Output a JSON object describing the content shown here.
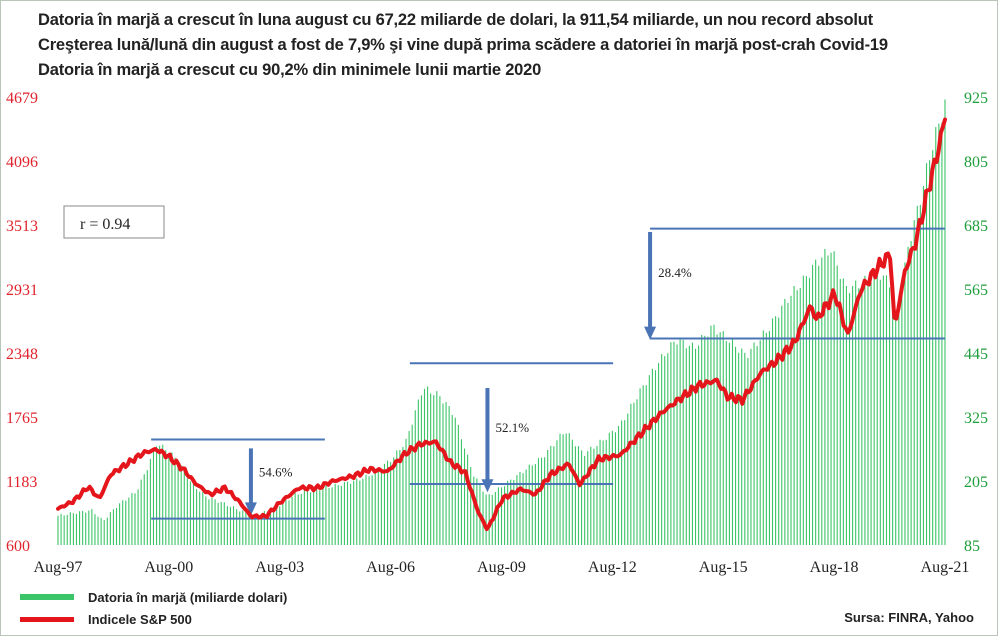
{
  "chart_data": {
    "type": "bar+line",
    "titles": [
      "Datoria în marjă a crescut în luna august cu 67,22 miliarde de dolari, la 911,54 miliarde, un nou record absolut",
      "Creşterea lună/lună din august a fost de 7,9% şi vine după prima scădere a datoriei în marjă post-crah Covid-19",
      "Datoria în marjă a crescut cu 90,2% din minimele lunii martie 2020"
    ],
    "x_ticks": [
      "Aug-97",
      "Aug-00",
      "Aug-03",
      "Aug-06",
      "Aug-09",
      "Aug-12",
      "Aug-15",
      "Aug-18",
      "Aug-21"
    ],
    "x_range": [
      1997.58,
      2021.58
    ],
    "y_left": {
      "ticks": [
        "4679",
        "4096",
        "3513",
        "2931",
        "2348",
        "1765",
        "1183",
        "600"
      ],
      "range": [
        600,
        4679
      ],
      "color": "#e0232c"
    },
    "y_right": {
      "ticks": [
        "925",
        "805",
        "685",
        "565",
        "445",
        "325",
        "205",
        "85"
      ],
      "range": [
        85,
        925
      ],
      "color": "#1f9e3c"
    },
    "series": [
      {
        "name": "Datoria în marjă (miliarde dolari)",
        "type": "bar",
        "axis": "right",
        "color": "#3cc468",
        "points": [
          [
            1997.58,
            140
          ],
          [
            1998.0,
            145
          ],
          [
            1998.5,
            150
          ],
          [
            1998.8,
            130
          ],
          [
            1999.2,
            160
          ],
          [
            1999.7,
            185
          ],
          [
            2000.0,
            230
          ],
          [
            2000.25,
            275
          ],
          [
            2000.5,
            265
          ],
          [
            2000.8,
            245
          ],
          [
            2001.2,
            200
          ],
          [
            2001.6,
            175
          ],
          [
            2002.0,
            165
          ],
          [
            2002.5,
            150
          ],
          [
            2002.9,
            140
          ],
          [
            2003.3,
            150
          ],
          [
            2003.7,
            165
          ],
          [
            2004.0,
            180
          ],
          [
            2004.6,
            190
          ],
          [
            2005.0,
            195
          ],
          [
            2005.6,
            205
          ],
          [
            2006.0,
            215
          ],
          [
            2006.6,
            245
          ],
          [
            2007.0,
            280
          ],
          [
            2007.45,
            380
          ],
          [
            2007.9,
            365
          ],
          [
            2008.3,
            330
          ],
          [
            2008.8,
            220
          ],
          [
            2009.2,
            175
          ],
          [
            2009.7,
            200
          ],
          [
            2010.2,
            225
          ],
          [
            2010.7,
            250
          ],
          [
            2011.3,
            300
          ],
          [
            2011.8,
            255
          ],
          [
            2012.3,
            280
          ],
          [
            2012.8,
            310
          ],
          [
            2013.3,
            370
          ],
          [
            2013.8,
            425
          ],
          [
            2014.3,
            470
          ],
          [
            2014.8,
            455
          ],
          [
            2015.3,
            495
          ],
          [
            2015.8,
            465
          ],
          [
            2016.2,
            440
          ],
          [
            2016.8,
            490
          ],
          [
            2017.3,
            545
          ],
          [
            2017.8,
            585
          ],
          [
            2018.1,
            615
          ],
          [
            2018.5,
            640
          ],
          [
            2018.9,
            565
          ],
          [
            2019.3,
            575
          ],
          [
            2019.8,
            595
          ],
          [
            2020.1,
            575
          ],
          [
            2020.25,
            500
          ],
          [
            2020.6,
            650
          ],
          [
            2020.9,
            730
          ],
          [
            2021.2,
            825
          ],
          [
            2021.58,
            911.54
          ]
        ]
      },
      {
        "name": "Indicele S&P 500",
        "type": "line",
        "axis": "left",
        "color": "#e5151c",
        "points": [
          [
            1997.58,
            930
          ],
          [
            1998.0,
            1000
          ],
          [
            1998.4,
            1130
          ],
          [
            1998.7,
            1020
          ],
          [
            1999.0,
            1240
          ],
          [
            1999.5,
            1350
          ],
          [
            1999.9,
            1440
          ],
          [
            2000.25,
            1470
          ],
          [
            2000.6,
            1400
          ],
          [
            2001.0,
            1280
          ],
          [
            2001.3,
            1160
          ],
          [
            2001.7,
            1060
          ],
          [
            2002.1,
            1120
          ],
          [
            2002.5,
            990
          ],
          [
            2002.8,
            860
          ],
          [
            2003.2,
            860
          ],
          [
            2003.6,
            990
          ],
          [
            2004.1,
            1120
          ],
          [
            2004.6,
            1120
          ],
          [
            2005.0,
            1180
          ],
          [
            2005.6,
            1230
          ],
          [
            2006.0,
            1290
          ],
          [
            2006.5,
            1270
          ],
          [
            2007.0,
            1440
          ],
          [
            2007.4,
            1520
          ],
          [
            2007.8,
            1540
          ],
          [
            2008.2,
            1350
          ],
          [
            2008.6,
            1260
          ],
          [
            2008.95,
            900
          ],
          [
            2009.2,
            740
          ],
          [
            2009.6,
            1020
          ],
          [
            2010.1,
            1110
          ],
          [
            2010.5,
            1060
          ],
          [
            2010.9,
            1240
          ],
          [
            2011.4,
            1340
          ],
          [
            2011.7,
            1150
          ],
          [
            2012.2,
            1380
          ],
          [
            2012.8,
            1420
          ],
          [
            2013.4,
            1630
          ],
          [
            2013.9,
            1800
          ],
          [
            2014.4,
            1930
          ],
          [
            2014.9,
            2050
          ],
          [
            2015.4,
            2100
          ],
          [
            2015.7,
            1950
          ],
          [
            2016.1,
            1920
          ],
          [
            2016.6,
            2170
          ],
          [
            2017.0,
            2270
          ],
          [
            2017.5,
            2440
          ],
          [
            2017.95,
            2780
          ],
          [
            2018.1,
            2650
          ],
          [
            2018.6,
            2890
          ],
          [
            2018.95,
            2510
          ],
          [
            2019.3,
            2920
          ],
          [
            2019.8,
            3140
          ],
          [
            2020.1,
            3250
          ],
          [
            2020.22,
            2580
          ],
          [
            2020.5,
            3100
          ],
          [
            2020.8,
            3370
          ],
          [
            2021.1,
            3800
          ],
          [
            2021.4,
            4200
          ],
          [
            2021.58,
            4500
          ]
        ]
      }
    ],
    "annotations": [
      {
        "text": "54.6%",
        "x": 2002.8,
        "y_top": 1480,
        "y_bottom": 870
      },
      {
        "text": "52.1%",
        "x": 2009.2,
        "y_top": 2030,
        "y_bottom": 1080
      },
      {
        "text": "28.4%",
        "x": 2013.6,
        "y_top": 3450,
        "y_bottom": 2470
      }
    ],
    "levels": [
      {
        "x_from": 2000.1,
        "x_to": 2004.8,
        "y": 1560
      },
      {
        "x_from": 2000.1,
        "x_to": 2004.8,
        "y": 840
      },
      {
        "x_from": 2007.1,
        "x_to": 2012.6,
        "y": 2255
      },
      {
        "x_from": 2007.1,
        "x_to": 2012.6,
        "y": 1155
      },
      {
        "x_from": 2013.6,
        "x_to": 2021.58,
        "y": 3480
      },
      {
        "x_from": 2013.6,
        "x_to": 2021.58,
        "y": 2480
      }
    ],
    "correlation_label": "r = 0.94",
    "source": "Sursa: FINRA, Yahoo",
    "grid": false,
    "legend_position": "bottom-left"
  }
}
